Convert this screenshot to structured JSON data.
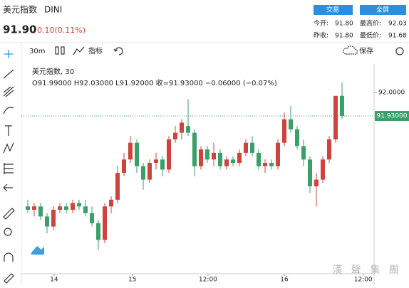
{
  "header": {
    "name": "美元指数",
    "code": "DINI",
    "price": "91.90",
    "change": "0.10(0.11%)",
    "buttons": [
      "交易",
      "全屏"
    ],
    "stats": [
      [
        "今开:",
        "91.80",
        "最高价:",
        "92.03"
      ],
      [
        "昨收:",
        "91.80",
        "最低价:",
        "91.68"
      ]
    ]
  },
  "toolbar": {
    "interval": "30m",
    "indicators": "指标",
    "save": "保存"
  },
  "watermark": "漢 聲 集 團",
  "chart_data": {
    "type": "candlestick",
    "legend_title": "美元指数, 30",
    "legend_ohlc": "O91.99000 H92.03000 L91.92000 收=91.93000 −0.06000 (−0.07%)",
    "up_color": "#d0433c",
    "down_color": "#3aa06a",
    "open": [
      91.66,
      91.65,
      91.66,
      91.63,
      91.6,
      91.65,
      91.66,
      91.65,
      91.67,
      91.66,
      91.64,
      91.61,
      91.56,
      91.66,
      91.68,
      91.76,
      91.8,
      91.85,
      91.78,
      91.74,
      91.79,
      91.8,
      91.77,
      91.86,
      91.88,
      91.9,
      91.88,
      91.78,
      91.83,
      91.8,
      91.82,
      91.78,
      91.8,
      91.79,
      91.82,
      91.85,
      91.82,
      91.78,
      91.79,
      91.78,
      91.85,
      91.92,
      91.89,
      91.84,
      91.8,
      91.72,
      91.74,
      91.8,
      91.86,
      91.99
    ],
    "high": [
      91.68,
      91.67,
      91.67,
      91.64,
      91.66,
      91.67,
      91.67,
      91.68,
      91.68,
      91.68,
      91.66,
      91.62,
      91.67,
      91.69,
      91.78,
      91.82,
      91.87,
      91.86,
      91.79,
      91.8,
      91.82,
      91.81,
      91.87,
      91.9,
      91.92,
      91.98,
      91.89,
      91.84,
      91.84,
      91.85,
      91.83,
      91.81,
      91.81,
      91.83,
      91.86,
      91.87,
      91.83,
      91.8,
      91.8,
      91.86,
      91.94,
      91.96,
      91.9,
      91.86,
      91.81,
      91.76,
      91.81,
      91.87,
      91.99,
      92.03
    ],
    "low": [
      91.64,
      91.63,
      91.62,
      91.58,
      91.59,
      91.64,
      91.64,
      91.64,
      91.65,
      91.63,
      91.6,
      91.53,
      91.55,
      91.64,
      91.67,
      91.75,
      91.79,
      91.76,
      91.71,
      91.73,
      91.77,
      91.75,
      91.76,
      91.85,
      91.86,
      91.87,
      91.75,
      91.77,
      91.79,
      91.78,
      91.77,
      91.77,
      91.78,
      91.78,
      91.81,
      91.81,
      91.77,
      91.76,
      91.77,
      91.77,
      91.84,
      91.88,
      91.83,
      91.78,
      91.7,
      91.66,
      91.73,
      91.79,
      91.85,
      91.92
    ],
    "close": [
      91.65,
      91.66,
      91.63,
      91.6,
      91.65,
      91.66,
      91.65,
      91.67,
      91.66,
      91.64,
      91.61,
      91.56,
      91.66,
      91.68,
      91.76,
      91.8,
      91.85,
      91.78,
      91.74,
      91.79,
      91.8,
      91.77,
      91.86,
      91.88,
      91.91,
      91.88,
      91.78,
      91.83,
      91.8,
      91.82,
      91.78,
      91.8,
      91.79,
      91.82,
      91.85,
      91.82,
      91.78,
      91.79,
      91.78,
      91.85,
      91.92,
      91.89,
      91.84,
      91.8,
      91.72,
      91.74,
      91.8,
      91.86,
      91.99,
      91.93
    ],
    "xlim": [
      -1,
      54
    ],
    "xticks": [
      {
        "value": 4.1,
        "label": "14"
      },
      {
        "value": 16.3,
        "label": "15"
      },
      {
        "value": 28.1,
        "label": "12:00"
      },
      {
        "value": 40,
        "label": "16"
      },
      {
        "value": 52.3,
        "label": "12:00"
      }
    ],
    "ylim": [
      91.459,
      92.085
    ],
    "yticks": [
      {
        "value": 92,
        "label": "92.0000"
      }
    ],
    "last_price": {
      "value": 91.93,
      "label": "91.93000"
    }
  }
}
